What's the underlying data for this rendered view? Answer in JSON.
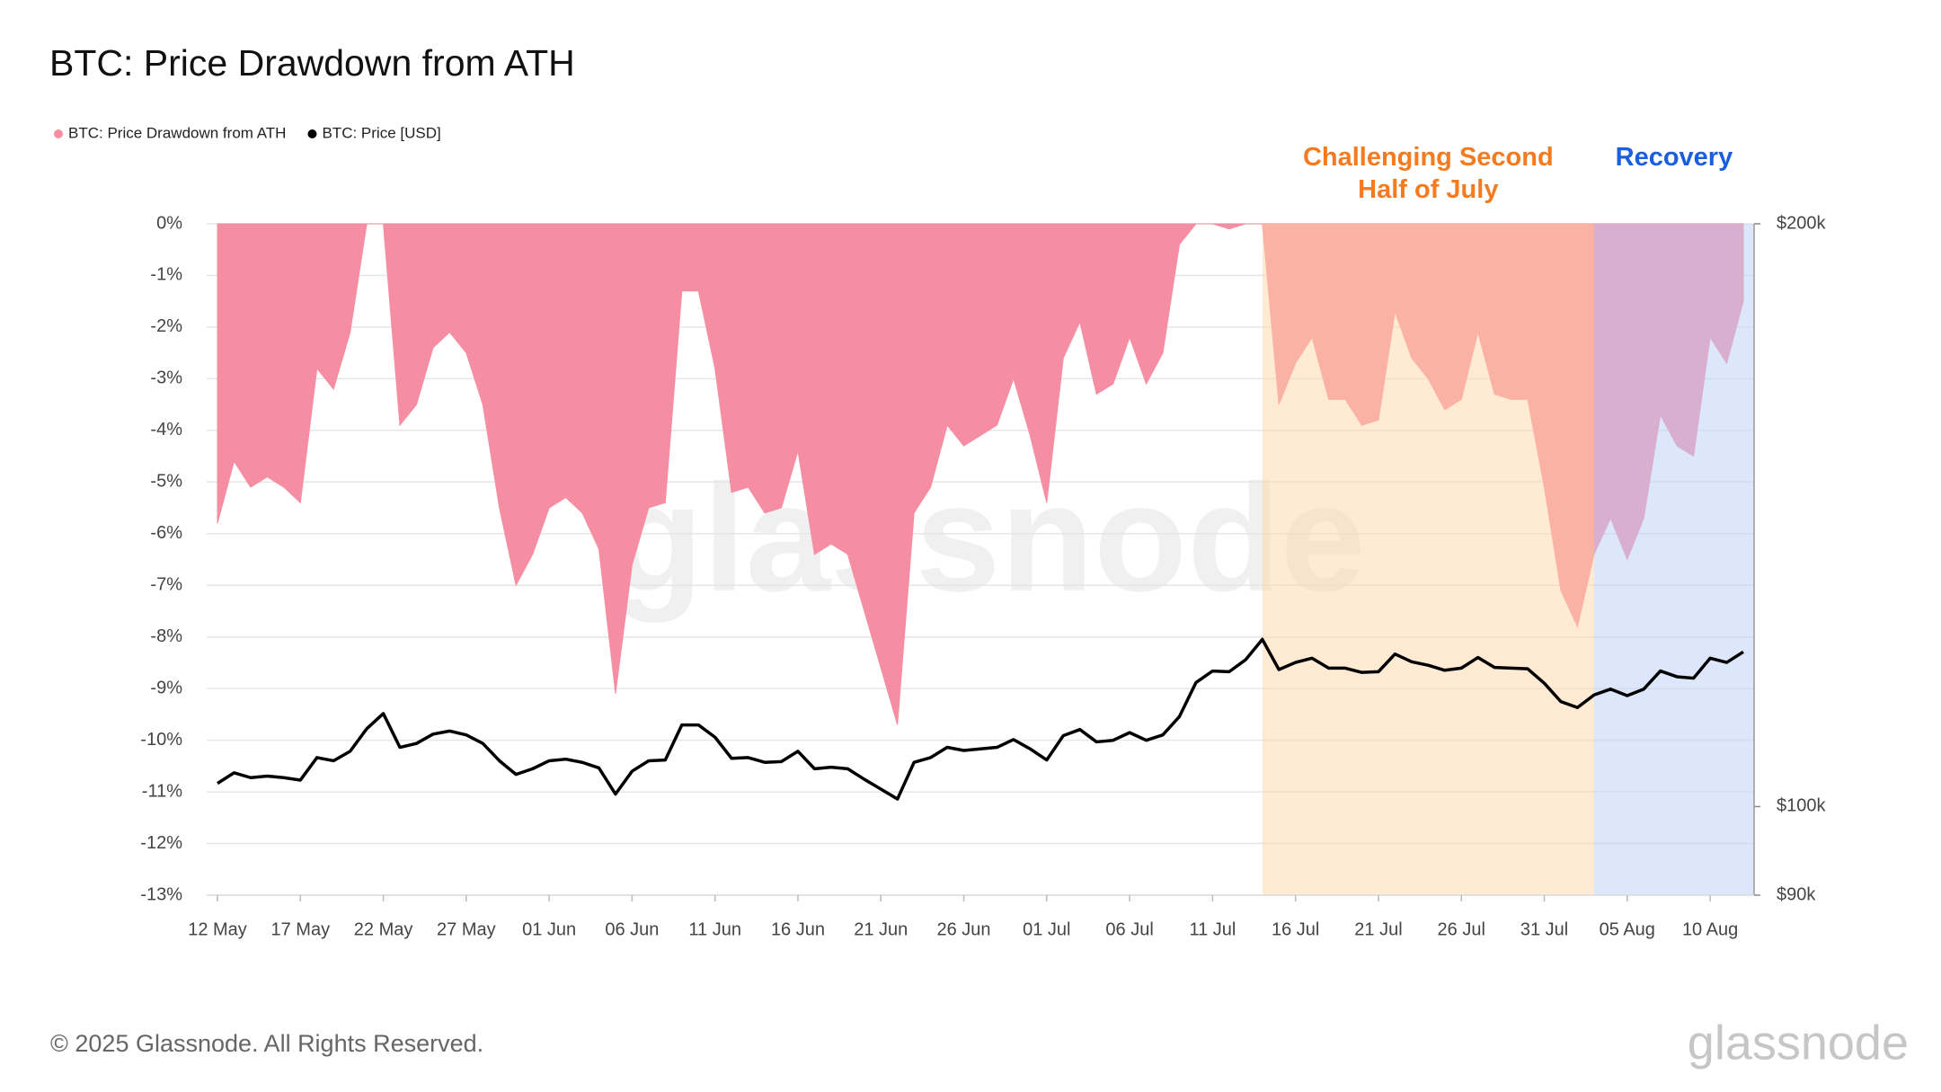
{
  "chart_data": {
    "type": "line",
    "title": "BTC: Price Drawdown from ATH",
    "categories": [
      "12 May",
      null,
      null,
      null,
      null,
      "17 May",
      null,
      null,
      null,
      null,
      "22 May",
      null,
      null,
      null,
      null,
      "27 May",
      null,
      null,
      null,
      null,
      "01 Jun",
      null,
      null,
      null,
      null,
      "06 Jun",
      null,
      null,
      null,
      null,
      "11 Jun",
      null,
      null,
      null,
      null,
      "16 Jun",
      null,
      null,
      null,
      null,
      "21 Jun",
      null,
      null,
      null,
      null,
      "26 Jun",
      null,
      null,
      null,
      null,
      "01 Jul",
      null,
      null,
      null,
      null,
      "06 Jul",
      null,
      null,
      null,
      null,
      "11 Jul",
      null,
      null,
      null,
      null,
      "16 Jul",
      null,
      null,
      null,
      null,
      "21 Jul",
      null,
      null,
      null,
      null,
      "26 Jul",
      null,
      null,
      null,
      null,
      "31 Jul",
      null,
      null,
      null,
      null,
      "05 Aug",
      null,
      null,
      null,
      null,
      "10 Aug",
      null,
      null
    ],
    "series": [
      {
        "name": "BTC: Price Drawdown from ATH",
        "type": "area",
        "color": "#f58ea2",
        "values": [
          -5.8,
          -4.6,
          -5.1,
          -4.9,
          -5.1,
          -5.4,
          -2.8,
          -3.2,
          -2.1,
          0,
          0,
          -3.9,
          -3.5,
          -2.4,
          -2.1,
          -2.5,
          -3.5,
          -5.5,
          -7.0,
          -6.4,
          -5.5,
          -5.3,
          -5.6,
          -6.3,
          -9.1,
          -6.6,
          -5.5,
          -5.4,
          -1.3,
          -1.3,
          -2.8,
          -5.2,
          -5.1,
          -5.6,
          -5.5,
          -4.4,
          -6.4,
          -6.2,
          -6.4,
          -7.5,
          -8.6,
          -9.7,
          -5.6,
          -5.1,
          -3.9,
          -4.3,
          -4.1,
          -3.9,
          -3.0,
          -4.1,
          -5.4,
          -2.6,
          -1.9,
          -3.3,
          -3.1,
          -2.2,
          -3.1,
          -2.5,
          -0.4,
          0,
          0,
          -0.1,
          0,
          0,
          -3.5,
          -2.7,
          -2.2,
          -3.4,
          -3.4,
          -3.9,
          -3.8,
          -1.7,
          -2.6,
          -3.0,
          -3.6,
          -3.4,
          -2.1,
          -3.3,
          -3.4,
          -3.4,
          -5.1,
          -7.1,
          -7.8,
          -6.4,
          -5.7,
          -6.5,
          -5.7,
          -3.7,
          -4.3,
          -4.5,
          -2.2,
          -2.7,
          -1.5
        ]
      },
      {
        "name": "BTC: Price [USD]",
        "type": "line",
        "color": "#000000",
        "axis": "y2",
        "values": [
          102800,
          104100,
          103500,
          103700,
          103500,
          103200,
          106000,
          105600,
          106800,
          109700,
          111700,
          107300,
          107800,
          109000,
          109400,
          108900,
          107800,
          105600,
          103900,
          104600,
          105600,
          105800,
          105400,
          104700,
          101500,
          104300,
          105600,
          105700,
          110200,
          110200,
          108600,
          105900,
          106000,
          105400,
          105500,
          106800,
          104600,
          104800,
          104600,
          103300,
          102100,
          100900,
          105400,
          106000,
          107300,
          106900,
          107100,
          107300,
          108300,
          107100,
          105700,
          108800,
          109600,
          108000,
          108200,
          109200,
          108200,
          108900,
          111300,
          115900,
          117500,
          117400,
          119100,
          122000,
          117700,
          118700,
          119300,
          117900,
          117900,
          117300,
          117400,
          119900,
          118800,
          118300,
          117600,
          117900,
          119400,
          118000,
          117900,
          117800,
          115800,
          113300,
          112500,
          114200,
          115000,
          114100,
          115000,
          117500,
          116700,
          116500,
          119300,
          118700,
          120200
        ]
      }
    ],
    "ylim": [
      -13,
      0
    ],
    "yticks": [
      {
        "value": 0,
        "label": "0%"
      },
      {
        "value": -1,
        "label": "-1%"
      },
      {
        "value": -2,
        "label": "-2%"
      },
      {
        "value": -3,
        "label": "-3%"
      },
      {
        "value": -4,
        "label": "-4%"
      },
      {
        "value": -5,
        "label": "-5%"
      },
      {
        "value": -6,
        "label": "-6%"
      },
      {
        "value": -7,
        "label": "-7%"
      },
      {
        "value": -8,
        "label": "-8%"
      },
      {
        "value": -9,
        "label": "-9%"
      },
      {
        "value": -10,
        "label": "-10%"
      },
      {
        "value": -11,
        "label": "-11%"
      },
      {
        "value": -12,
        "label": "-12%"
      },
      {
        "value": -13,
        "label": "-13%"
      }
    ],
    "y2lim": [
      90000,
      200000
    ],
    "y2scale": "log",
    "y2ticks": [
      {
        "value": 200000,
        "label": "$200k"
      },
      {
        "value": 100000,
        "label": "$100k"
      },
      {
        "value": 90000,
        "label": "$90k"
      }
    ],
    "grid": true,
    "legend": "top-left",
    "annotations": [
      {
        "text": "Challenging Second Half of July",
        "color": "#f47b20",
        "fill": "#ffd6a8",
        "x_range": [
          63,
          83
        ]
      },
      {
        "text": "Recovery",
        "color": "#1a5fe0",
        "fill": "#bcd0fa",
        "x_range": [
          83,
          92
        ]
      }
    ],
    "watermark": "glassnode",
    "footer": "© 2025 Glassnode. All Rights Reserved.",
    "logo": "glassnode"
  }
}
